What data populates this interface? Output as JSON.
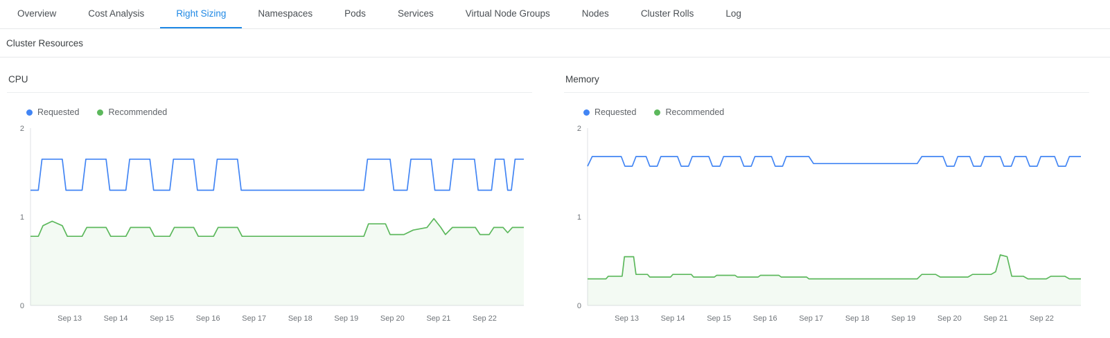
{
  "tabs": {
    "items": [
      {
        "label": "Overview",
        "active": false
      },
      {
        "label": "Cost Analysis",
        "active": false
      },
      {
        "label": "Right Sizing",
        "active": true
      },
      {
        "label": "Namespaces",
        "active": false
      },
      {
        "label": "Pods",
        "active": false
      },
      {
        "label": "Services",
        "active": false
      },
      {
        "label": "Virtual Node Groups",
        "active": false
      },
      {
        "label": "Nodes",
        "active": false
      },
      {
        "label": "Cluster Rolls",
        "active": false
      },
      {
        "label": "Log",
        "active": false
      }
    ]
  },
  "section": {
    "title": "Cluster Resources"
  },
  "colors": {
    "active_tab": "#1e88e5",
    "requested": "#4285f4",
    "recommended": "#5cb85c",
    "recommended_fill": "rgba(92,184,92,0.07)",
    "axis": "#dfe1e5",
    "tick_text": "#6f7479"
  },
  "chart_data": [
    {
      "type": "line",
      "title": "CPU",
      "xlim": [
        12.15,
        22.85
      ],
      "ylim": [
        0,
        2
      ],
      "yticks": [
        0,
        1,
        2
      ],
      "xticks": [
        {
          "x": 13,
          "label": "Sep 13"
        },
        {
          "x": 14,
          "label": "Sep 14"
        },
        {
          "x": 15,
          "label": "Sep 15"
        },
        {
          "x": 16,
          "label": "Sep 16"
        },
        {
          "x": 17,
          "label": "Sep 17"
        },
        {
          "x": 18,
          "label": "Sep 18"
        },
        {
          "x": 19,
          "label": "Sep 19"
        },
        {
          "x": 20,
          "label": "Sep 20"
        },
        {
          "x": 21,
          "label": "Sep 21"
        },
        {
          "x": 22,
          "label": "Sep 22"
        }
      ],
      "series": [
        {
          "name": "Requested",
          "color": "#4285f4",
          "fill": false,
          "points": [
            [
              12.15,
              1.3
            ],
            [
              12.32,
              1.3
            ],
            [
              12.4,
              1.65
            ],
            [
              12.84,
              1.65
            ],
            [
              12.92,
              1.3
            ],
            [
              13.27,
              1.3
            ],
            [
              13.35,
              1.65
            ],
            [
              13.79,
              1.65
            ],
            [
              13.87,
              1.3
            ],
            [
              14.22,
              1.3
            ],
            [
              14.3,
              1.65
            ],
            [
              14.74,
              1.65
            ],
            [
              14.82,
              1.3
            ],
            [
              15.17,
              1.3
            ],
            [
              15.25,
              1.65
            ],
            [
              15.69,
              1.65
            ],
            [
              15.77,
              1.3
            ],
            [
              16.12,
              1.3
            ],
            [
              16.2,
              1.65
            ],
            [
              16.64,
              1.65
            ],
            [
              16.72,
              1.3
            ],
            [
              19.38,
              1.3
            ],
            [
              19.46,
              1.65
            ],
            [
              19.95,
              1.65
            ],
            [
              20.03,
              1.3
            ],
            [
              20.32,
              1.3
            ],
            [
              20.4,
              1.65
            ],
            [
              20.84,
              1.65
            ],
            [
              20.92,
              1.3
            ],
            [
              21.24,
              1.3
            ],
            [
              21.32,
              1.65
            ],
            [
              21.78,
              1.65
            ],
            [
              21.86,
              1.3
            ],
            [
              22.15,
              1.3
            ],
            [
              22.23,
              1.65
            ],
            [
              22.42,
              1.65
            ],
            [
              22.5,
              1.3
            ],
            [
              22.58,
              1.3
            ],
            [
              22.66,
              1.65
            ],
            [
              22.85,
              1.65
            ]
          ]
        },
        {
          "name": "Recommended",
          "color": "#5cb85c",
          "fill": true,
          "points": [
            [
              12.15,
              0.78
            ],
            [
              12.32,
              0.78
            ],
            [
              12.42,
              0.9
            ],
            [
              12.62,
              0.95
            ],
            [
              12.84,
              0.9
            ],
            [
              12.95,
              0.78
            ],
            [
              13.27,
              0.78
            ],
            [
              13.37,
              0.88
            ],
            [
              13.79,
              0.88
            ],
            [
              13.89,
              0.78
            ],
            [
              14.22,
              0.78
            ],
            [
              14.32,
              0.88
            ],
            [
              14.74,
              0.88
            ],
            [
              14.84,
              0.78
            ],
            [
              15.17,
              0.78
            ],
            [
              15.27,
              0.88
            ],
            [
              15.69,
              0.88
            ],
            [
              15.79,
              0.78
            ],
            [
              16.12,
              0.78
            ],
            [
              16.22,
              0.88
            ],
            [
              16.64,
              0.88
            ],
            [
              16.74,
              0.78
            ],
            [
              19.38,
              0.78
            ],
            [
              19.48,
              0.92
            ],
            [
              19.85,
              0.92
            ],
            [
              19.95,
              0.8
            ],
            [
              20.25,
              0.8
            ],
            [
              20.45,
              0.85
            ],
            [
              20.75,
              0.88
            ],
            [
              20.9,
              0.98
            ],
            [
              21.05,
              0.88
            ],
            [
              21.15,
              0.8
            ],
            [
              21.3,
              0.88
            ],
            [
              21.8,
              0.88
            ],
            [
              21.9,
              0.8
            ],
            [
              22.1,
              0.8
            ],
            [
              22.2,
              0.88
            ],
            [
              22.4,
              0.88
            ],
            [
              22.5,
              0.82
            ],
            [
              22.6,
              0.88
            ],
            [
              22.85,
              0.88
            ]
          ]
        }
      ]
    },
    {
      "type": "line",
      "title": "Memory",
      "xlim": [
        12.15,
        22.85
      ],
      "ylim": [
        0,
        2
      ],
      "yticks": [
        0,
        1,
        2
      ],
      "xticks": [
        {
          "x": 13,
          "label": "Sep 13"
        },
        {
          "x": 14,
          "label": "Sep 14"
        },
        {
          "x": 15,
          "label": "Sep 15"
        },
        {
          "x": 16,
          "label": "Sep 16"
        },
        {
          "x": 17,
          "label": "Sep 17"
        },
        {
          "x": 18,
          "label": "Sep 18"
        },
        {
          "x": 19,
          "label": "Sep 19"
        },
        {
          "x": 20,
          "label": "Sep 20"
        },
        {
          "x": 21,
          "label": "Sep 21"
        },
        {
          "x": 22,
          "label": "Sep 22"
        }
      ],
      "series": [
        {
          "name": "Requested",
          "color": "#4285f4",
          "fill": false,
          "points": [
            [
              12.15,
              1.57
            ],
            [
              12.25,
              1.68
            ],
            [
              12.88,
              1.68
            ],
            [
              12.96,
              1.57
            ],
            [
              13.12,
              1.57
            ],
            [
              13.2,
              1.68
            ],
            [
              13.42,
              1.68
            ],
            [
              13.5,
              1.57
            ],
            [
              13.66,
              1.57
            ],
            [
              13.74,
              1.68
            ],
            [
              14.1,
              1.68
            ],
            [
              14.18,
              1.57
            ],
            [
              14.34,
              1.57
            ],
            [
              14.42,
              1.68
            ],
            [
              14.78,
              1.68
            ],
            [
              14.86,
              1.57
            ],
            [
              15.02,
              1.57
            ],
            [
              15.1,
              1.68
            ],
            [
              15.46,
              1.68
            ],
            [
              15.54,
              1.57
            ],
            [
              15.7,
              1.57
            ],
            [
              15.78,
              1.68
            ],
            [
              16.14,
              1.68
            ],
            [
              16.22,
              1.57
            ],
            [
              16.38,
              1.57
            ],
            [
              16.46,
              1.68
            ],
            [
              16.95,
              1.68
            ],
            [
              17.05,
              1.6
            ],
            [
              19.3,
              1.6
            ],
            [
              19.4,
              1.68
            ],
            [
              19.86,
              1.68
            ],
            [
              19.94,
              1.57
            ],
            [
              20.1,
              1.57
            ],
            [
              20.18,
              1.68
            ],
            [
              20.44,
              1.68
            ],
            [
              20.52,
              1.57
            ],
            [
              20.68,
              1.57
            ],
            [
              20.76,
              1.68
            ],
            [
              21.1,
              1.68
            ],
            [
              21.18,
              1.57
            ],
            [
              21.34,
              1.57
            ],
            [
              21.42,
              1.68
            ],
            [
              21.66,
              1.68
            ],
            [
              21.74,
              1.57
            ],
            [
              21.9,
              1.57
            ],
            [
              21.98,
              1.68
            ],
            [
              22.28,
              1.68
            ],
            [
              22.36,
              1.57
            ],
            [
              22.52,
              1.57
            ],
            [
              22.6,
              1.68
            ],
            [
              22.85,
              1.68
            ]
          ]
        },
        {
          "name": "Recommended",
          "color": "#5cb85c",
          "fill": true,
          "points": [
            [
              12.15,
              0.3
            ],
            [
              12.55,
              0.3
            ],
            [
              12.6,
              0.33
            ],
            [
              12.9,
              0.33
            ],
            [
              12.95,
              0.55
            ],
            [
              13.15,
              0.55
            ],
            [
              13.2,
              0.35
            ],
            [
              13.45,
              0.35
            ],
            [
              13.5,
              0.32
            ],
            [
              13.95,
              0.32
            ],
            [
              14.0,
              0.35
            ],
            [
              14.4,
              0.35
            ],
            [
              14.45,
              0.32
            ],
            [
              14.9,
              0.32
            ],
            [
              14.95,
              0.34
            ],
            [
              15.35,
              0.34
            ],
            [
              15.4,
              0.32
            ],
            [
              15.85,
              0.32
            ],
            [
              15.9,
              0.34
            ],
            [
              16.3,
              0.34
            ],
            [
              16.35,
              0.32
            ],
            [
              16.9,
              0.32
            ],
            [
              16.95,
              0.3
            ],
            [
              19.3,
              0.3
            ],
            [
              19.4,
              0.35
            ],
            [
              19.7,
              0.35
            ],
            [
              19.8,
              0.32
            ],
            [
              20.4,
              0.32
            ],
            [
              20.5,
              0.35
            ],
            [
              20.9,
              0.35
            ],
            [
              21.0,
              0.38
            ],
            [
              21.1,
              0.57
            ],
            [
              21.25,
              0.55
            ],
            [
              21.35,
              0.33
            ],
            [
              21.6,
              0.33
            ],
            [
              21.7,
              0.3
            ],
            [
              22.1,
              0.3
            ],
            [
              22.2,
              0.33
            ],
            [
              22.5,
              0.33
            ],
            [
              22.6,
              0.3
            ],
            [
              22.85,
              0.3
            ]
          ]
        }
      ]
    }
  ]
}
